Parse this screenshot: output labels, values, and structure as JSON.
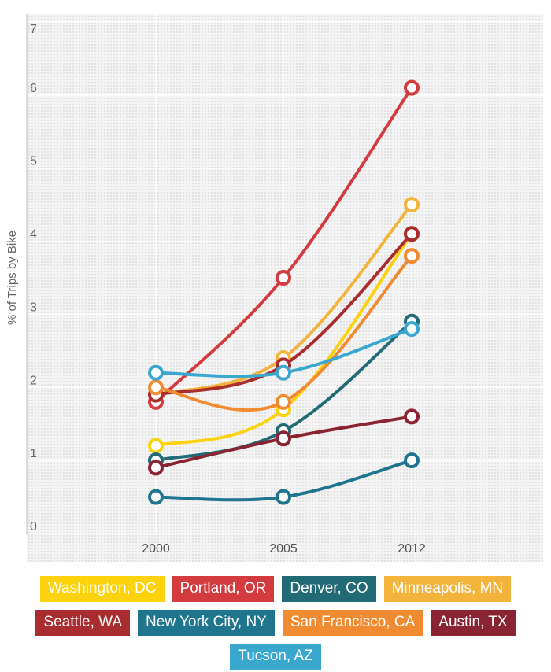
{
  "chart_data": {
    "type": "line",
    "ylabel": "% of Trips by Bike",
    "xlabel": "",
    "categories": [
      "2000",
      "2005",
      "2012"
    ],
    "ylim": [
      0,
      7
    ],
    "yticks": [
      "0",
      "1",
      "2",
      "3",
      "4",
      "5",
      "6",
      "7"
    ],
    "grid": true,
    "legend_position": "bottom",
    "series": [
      {
        "name": "Washington, DC",
        "color": "#FBD20B",
        "values": [
          1.2,
          1.7,
          4.1
        ]
      },
      {
        "name": "Portland, OR",
        "color": "#D33B3F",
        "values": [
          1.8,
          3.5,
          6.1
        ]
      },
      {
        "name": "Denver, CO",
        "color": "#226A76",
        "values": [
          1.0,
          1.4,
          2.9
        ]
      },
      {
        "name": "Minneapolis, MN",
        "color": "#F4B33A",
        "values": [
          1.9,
          2.4,
          4.5
        ]
      },
      {
        "name": "Seattle, WA",
        "color": "#A92D2E",
        "values": [
          1.9,
          2.3,
          4.1
        ]
      },
      {
        "name": "New York City, NY",
        "color": "#20758E",
        "values": [
          0.5,
          0.5,
          1.0
        ]
      },
      {
        "name": "San Francisco, CA",
        "color": "#F18B31",
        "values": [
          2.0,
          1.8,
          3.8
        ]
      },
      {
        "name": "Austin, TX",
        "color": "#8A2432",
        "values": [
          0.9,
          1.3,
          1.6
        ]
      },
      {
        "name": "Tucson, AZ",
        "color": "#3AA8CE",
        "values": [
          2.2,
          2.2,
          2.8
        ]
      }
    ]
  },
  "legend": {
    "items": [
      {
        "label": "Washington, DC",
        "color": "#FBD20B"
      },
      {
        "label": "Portland, OR",
        "color": "#D33B3F"
      },
      {
        "label": "Denver, CO",
        "color": "#226A76"
      },
      {
        "label": "Minneapolis, MN",
        "color": "#F4B33A"
      },
      {
        "label": "Seattle, WA",
        "color": "#A92D2E"
      },
      {
        "label": "New York City, NY",
        "color": "#20758E"
      },
      {
        "label": "San Francisco, CA",
        "color": "#F18B31"
      },
      {
        "label": "Austin, TX",
        "color": "#8A2432"
      },
      {
        "label": "Tucson, AZ",
        "color": "#3AA8CE"
      }
    ]
  }
}
